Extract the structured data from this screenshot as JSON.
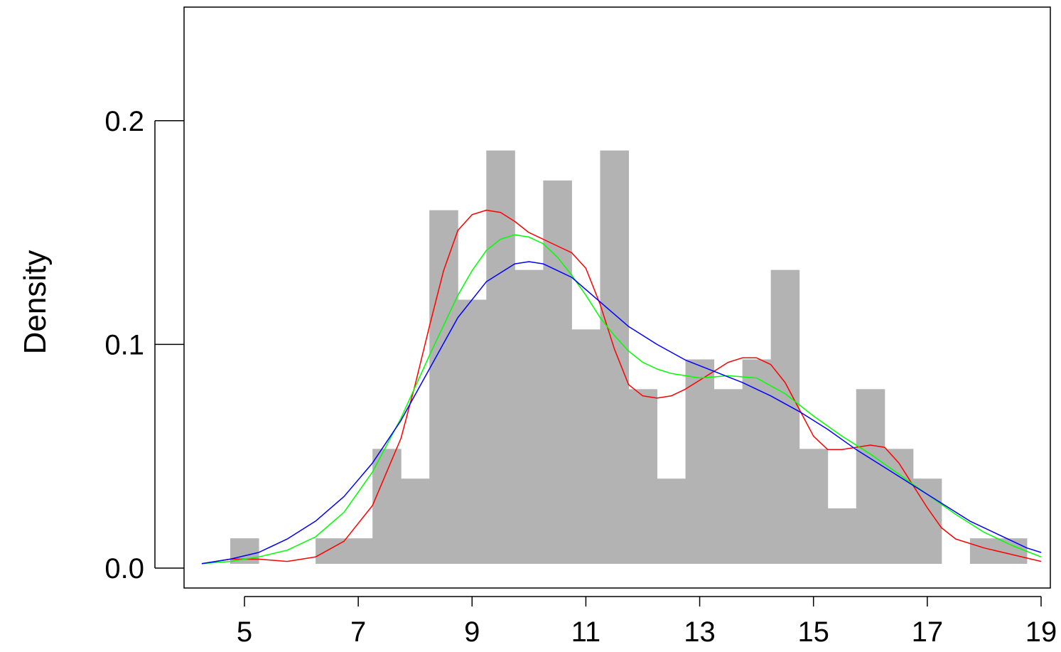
{
  "chart_data": {
    "type": "bar",
    "title": "",
    "xlabel": "",
    "ylabel": "Density",
    "xlim": [
      4.2,
      19.0
    ],
    "ylim": [
      0.0,
      0.25
    ],
    "x_ticks": [
      5,
      7,
      9,
      11,
      13,
      15,
      17,
      19
    ],
    "x_tick_labels": [
      "5",
      "7",
      "9",
      "11",
      "13",
      "15",
      "17",
      "19"
    ],
    "y_ticks": [
      0.0,
      0.1,
      0.2
    ],
    "y_tick_labels": [
      "0.0",
      "0.1",
      "0.2"
    ],
    "grid": false,
    "histogram": {
      "color": "#b3b3b3",
      "bin_width": 0.5,
      "bins": [
        {
          "x0": 4.75,
          "x1": 5.25,
          "density": 0.0133
        },
        {
          "x0": 5.25,
          "x1": 5.75,
          "density": 0.0
        },
        {
          "x0": 5.75,
          "x1": 6.25,
          "density": 0.0
        },
        {
          "x0": 6.25,
          "x1": 6.75,
          "density": 0.0133
        },
        {
          "x0": 6.75,
          "x1": 7.25,
          "density": 0.0133
        },
        {
          "x0": 7.25,
          "x1": 7.75,
          "density": 0.0533
        },
        {
          "x0": 7.75,
          "x1": 8.25,
          "density": 0.04
        },
        {
          "x0": 8.25,
          "x1": 8.75,
          "density": 0.16
        },
        {
          "x0": 8.75,
          "x1": 9.25,
          "density": 0.12
        },
        {
          "x0": 9.25,
          "x1": 9.75,
          "density": 0.1867
        },
        {
          "x0": 9.75,
          "x1": 10.25,
          "density": 0.1333
        },
        {
          "x0": 10.25,
          "x1": 10.75,
          "density": 0.1733
        },
        {
          "x0": 10.75,
          "x1": 11.25,
          "density": 0.1067
        },
        {
          "x0": 11.25,
          "x1": 11.75,
          "density": 0.1867
        },
        {
          "x0": 11.75,
          "x1": 12.25,
          "density": 0.08
        },
        {
          "x0": 12.25,
          "x1": 12.75,
          "density": 0.04
        },
        {
          "x0": 12.75,
          "x1": 13.25,
          "density": 0.0933
        },
        {
          "x0": 13.25,
          "x1": 13.75,
          "density": 0.08
        },
        {
          "x0": 13.75,
          "x1": 14.25,
          "density": 0.0933
        },
        {
          "x0": 14.25,
          "x1": 14.75,
          "density": 0.1333
        },
        {
          "x0": 14.75,
          "x1": 15.25,
          "density": 0.0533
        },
        {
          "x0": 15.25,
          "x1": 15.75,
          "density": 0.0267
        },
        {
          "x0": 15.75,
          "x1": 16.25,
          "density": 0.08
        },
        {
          "x0": 16.25,
          "x1": 16.75,
          "density": 0.0533
        },
        {
          "x0": 16.75,
          "x1": 17.25,
          "density": 0.04
        },
        {
          "x0": 17.25,
          "x1": 17.75,
          "density": 0.0
        },
        {
          "x0": 17.75,
          "x1": 18.25,
          "density": 0.0133
        },
        {
          "x0": 18.25,
          "x1": 18.75,
          "density": 0.0133
        }
      ]
    },
    "series": [
      {
        "type": "line",
        "color": "#ff0000",
        "x": [
          4.25,
          4.75,
          5.25,
          5.75,
          6.25,
          6.75,
          7.25,
          7.75,
          8.0,
          8.25,
          8.5,
          8.75,
          9.0,
          9.25,
          9.5,
          9.75,
          10.0,
          10.25,
          10.5,
          10.75,
          11.0,
          11.25,
          11.5,
          11.75,
          12.0,
          12.25,
          12.5,
          12.75,
          13.0,
          13.25,
          13.5,
          13.75,
          14.0,
          14.25,
          14.5,
          14.75,
          15.0,
          15.25,
          15.5,
          15.75,
          16.0,
          16.25,
          16.5,
          16.75,
          17.0,
          17.25,
          17.5,
          17.75,
          18.0,
          18.5,
          19.0
        ],
        "values": [
          0.002,
          0.004,
          0.004,
          0.003,
          0.005,
          0.012,
          0.028,
          0.058,
          0.082,
          0.108,
          0.133,
          0.151,
          0.158,
          0.16,
          0.159,
          0.155,
          0.15,
          0.147,
          0.144,
          0.141,
          0.134,
          0.118,
          0.098,
          0.082,
          0.077,
          0.076,
          0.077,
          0.08,
          0.084,
          0.088,
          0.092,
          0.094,
          0.094,
          0.091,
          0.083,
          0.071,
          0.059,
          0.053,
          0.053,
          0.054,
          0.055,
          0.054,
          0.047,
          0.037,
          0.027,
          0.018,
          0.013,
          0.011,
          0.009,
          0.006,
          0.003
        ]
      },
      {
        "type": "line",
        "color": "#00ff00",
        "x": [
          4.25,
          4.75,
          5.25,
          5.75,
          6.25,
          6.75,
          7.25,
          7.75,
          8.25,
          8.75,
          9.0,
          9.25,
          9.5,
          9.75,
          10.0,
          10.25,
          10.5,
          10.75,
          11.0,
          11.25,
          11.5,
          11.75,
          12.0,
          12.25,
          12.5,
          12.75,
          13.0,
          13.5,
          14.0,
          14.5,
          15.0,
          15.5,
          16.0,
          16.5,
          17.0,
          17.5,
          18.0,
          18.5,
          19.0
        ],
        "values": [
          0.002,
          0.003,
          0.005,
          0.008,
          0.014,
          0.025,
          0.043,
          0.067,
          0.095,
          0.122,
          0.133,
          0.142,
          0.147,
          0.149,
          0.148,
          0.145,
          0.139,
          0.131,
          0.122,
          0.112,
          0.104,
          0.097,
          0.092,
          0.089,
          0.087,
          0.086,
          0.085,
          0.086,
          0.085,
          0.078,
          0.068,
          0.059,
          0.051,
          0.042,
          0.033,
          0.024,
          0.016,
          0.01,
          0.005
        ]
      },
      {
        "type": "line",
        "color": "#0000ff",
        "x": [
          4.25,
          4.75,
          5.25,
          5.75,
          6.25,
          6.75,
          7.25,
          7.75,
          8.25,
          8.75,
          9.25,
          9.75,
          10.0,
          10.25,
          10.75,
          11.25,
          11.75,
          12.25,
          12.75,
          13.25,
          13.75,
          14.25,
          14.75,
          15.25,
          15.75,
          16.25,
          16.75,
          17.25,
          17.75,
          18.25,
          18.75,
          19.0
        ],
        "values": [
          0.002,
          0.004,
          0.007,
          0.013,
          0.021,
          0.032,
          0.047,
          0.066,
          0.089,
          0.112,
          0.128,
          0.136,
          0.137,
          0.136,
          0.13,
          0.119,
          0.108,
          0.1,
          0.093,
          0.088,
          0.083,
          0.077,
          0.07,
          0.062,
          0.053,
          0.045,
          0.037,
          0.029,
          0.021,
          0.015,
          0.009,
          0.007
        ]
      }
    ]
  }
}
